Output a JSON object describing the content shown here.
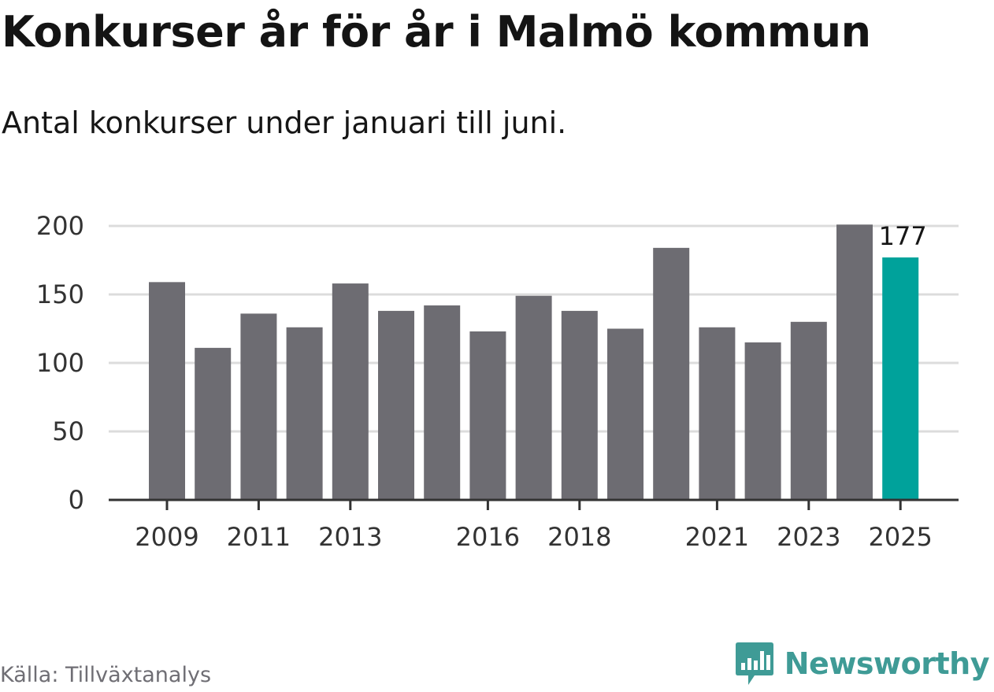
{
  "title": "Konkurser år för år i Malmö kommun",
  "subtitle": "Antal konkurser under januari till juni.",
  "source": "Källa: Tillväxtanalys",
  "brand": {
    "name": "Newsworthy",
    "icon": "newsworthy-logo-icon",
    "color": "#3f9b96"
  },
  "colors": {
    "bar": "#6d6c72",
    "highlight": "#00a29b",
    "grid": "#dcdcdc",
    "axis": "#333333",
    "tick_label": "#333333"
  },
  "chart_data": {
    "type": "bar",
    "categories": [
      "2009",
      "2010",
      "2011",
      "2012",
      "2013",
      "2014",
      "2015",
      "2016",
      "2017",
      "2018",
      "2019",
      "2020",
      "2021",
      "2022",
      "2023",
      "2024",
      "2025"
    ],
    "values": [
      159,
      111,
      136,
      126,
      158,
      138,
      142,
      123,
      149,
      138,
      125,
      184,
      126,
      115,
      130,
      201,
      177
    ],
    "x_tick_labels": [
      "2009",
      "2011",
      "2013",
      "2016",
      "2018",
      "2021",
      "2023",
      "2025"
    ],
    "y_ticks": [
      0,
      50,
      100,
      150,
      200
    ],
    "ylim": [
      0,
      200
    ],
    "highlight_category": "2025",
    "data_labels": [
      {
        "category": "2025",
        "text": "177"
      }
    ],
    "grid": true,
    "xlabel": "",
    "ylabel": ""
  }
}
